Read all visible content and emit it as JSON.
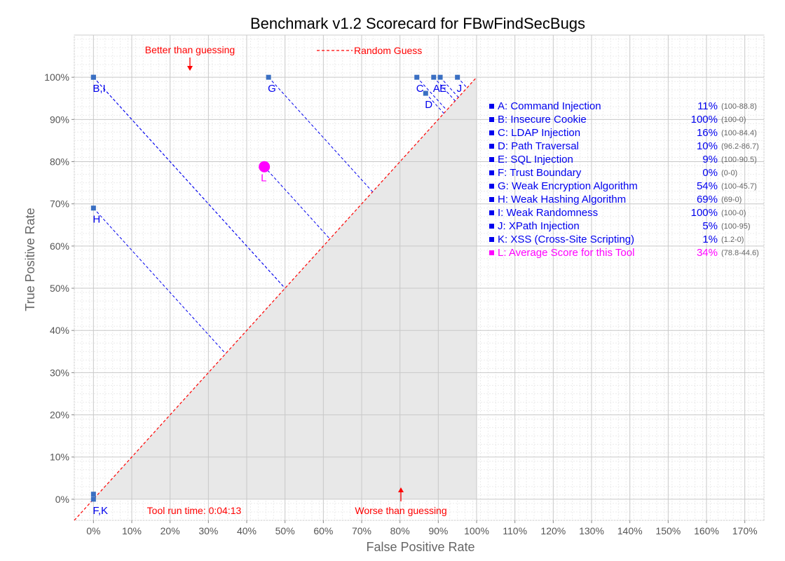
{
  "colors": {
    "point": "#3a6fc2",
    "point_label": "#0000ee",
    "guess_line": "#ff0000",
    "worse_area": "#e8e8e8",
    "plot_bg": "#ffffff",
    "grid_major": "#c8c8c8",
    "grid_minor": "#ececec",
    "connector": "#0000ee",
    "average": "#ff00ff",
    "axis_text": "#555555",
    "annotation": "#ff0000",
    "legend_text": "#0000ee",
    "legend_range": "#666666"
  },
  "chart_data": {
    "type": "scatter",
    "title": "Benchmark v1.2 Scorecard for FBwFindSecBugs",
    "xlabel": "False Positive Rate",
    "ylabel": "True Positive Rate",
    "xlim": [
      -5,
      175
    ],
    "ylim": [
      -5,
      110
    ],
    "xticks": [
      0,
      10,
      20,
      30,
      40,
      50,
      60,
      70,
      80,
      90,
      100,
      110,
      120,
      130,
      140,
      150,
      160,
      170
    ],
    "xtick_labels": [
      "0%",
      "10%",
      "20%",
      "30%",
      "40%",
      "50%",
      "60%",
      "70%",
      "80%",
      "90%",
      "100%",
      "110%",
      "120%",
      "130%",
      "140%",
      "150%",
      "160%",
      "170%"
    ],
    "yticks": [
      0,
      10,
      20,
      30,
      40,
      50,
      60,
      70,
      80,
      90,
      100
    ],
    "ytick_labels": [
      "0%",
      "10%",
      "20%",
      "30%",
      "40%",
      "50%",
      "60%",
      "70%",
      "80%",
      "90%",
      "100%"
    ],
    "grid": true,
    "random_guess_label": "Random Guess",
    "annotations": {
      "better": "Better than guessing",
      "worse": "Worse than guessing",
      "runtime": "Tool run time: 0:04:13"
    },
    "points": [
      {
        "id": "A",
        "x": 88.8,
        "y": 100
      },
      {
        "id": "B",
        "x": 0,
        "y": 100
      },
      {
        "id": "C",
        "x": 84.4,
        "y": 100
      },
      {
        "id": "D",
        "x": 86.7,
        "y": 96.2
      },
      {
        "id": "E",
        "x": 90.5,
        "y": 100
      },
      {
        "id": "F",
        "x": 0,
        "y": 0
      },
      {
        "id": "G",
        "x": 45.7,
        "y": 100
      },
      {
        "id": "H",
        "x": 0,
        "y": 69
      },
      {
        "id": "I",
        "x": 0,
        "y": 100
      },
      {
        "id": "J",
        "x": 95,
        "y": 100
      },
      {
        "id": "K",
        "x": 0,
        "y": 1.2
      }
    ],
    "point_labels": [
      {
        "text": "B,I",
        "x": 0,
        "y": 100
      },
      {
        "text": "G",
        "x": 45.7,
        "y": 100
      },
      {
        "text": "C",
        "x": 84.4,
        "y": 100
      },
      {
        "text": "A",
        "x": 88.8,
        "y": 100
      },
      {
        "text": "E",
        "x": 90.5,
        "y": 100
      },
      {
        "text": "J",
        "x": 95,
        "y": 100
      },
      {
        "text": "D",
        "x": 86.7,
        "y": 96.2
      },
      {
        "text": "H",
        "x": 0,
        "y": 69
      },
      {
        "text": "F,K",
        "x": 0,
        "y": 0
      }
    ],
    "average": {
      "id": "L",
      "x": 44.6,
      "y": 78.8
    },
    "legend": {
      "position": "right",
      "entries": [
        {
          "label": "A: Command Injection",
          "score": "11%",
          "range": "(100-88.8)"
        },
        {
          "label": "B: Insecure Cookie",
          "score": "100%",
          "range": "(100-0)"
        },
        {
          "label": "C: LDAP Injection",
          "score": "16%",
          "range": "(100-84.4)"
        },
        {
          "label": "D: Path Traversal",
          "score": "10%",
          "range": "(96.2-86.7)"
        },
        {
          "label": "E: SQL Injection",
          "score": "9%",
          "range": "(100-90.5)"
        },
        {
          "label": "F: Trust Boundary",
          "score": "0%",
          "range": "(0-0)"
        },
        {
          "label": "G: Weak Encryption Algorithm",
          "score": "54%",
          "range": "(100-45.7)"
        },
        {
          "label": "H: Weak Hashing Algorithm",
          "score": "69%",
          "range": "(69-0)"
        },
        {
          "label": "I:   Weak Randomness",
          "score": "100%",
          "range": "(100-0)"
        },
        {
          "label": "J:  XPath Injection",
          "score": "5%",
          "range": "(100-95)"
        },
        {
          "label": "K: XSS (Cross-Site Scripting)",
          "score": "1%",
          "range": "(1.2-0)"
        },
        {
          "label": "L: Average Score for this Tool",
          "score": "34%",
          "range": "(78.8-44.6)",
          "average": true
        }
      ]
    }
  }
}
